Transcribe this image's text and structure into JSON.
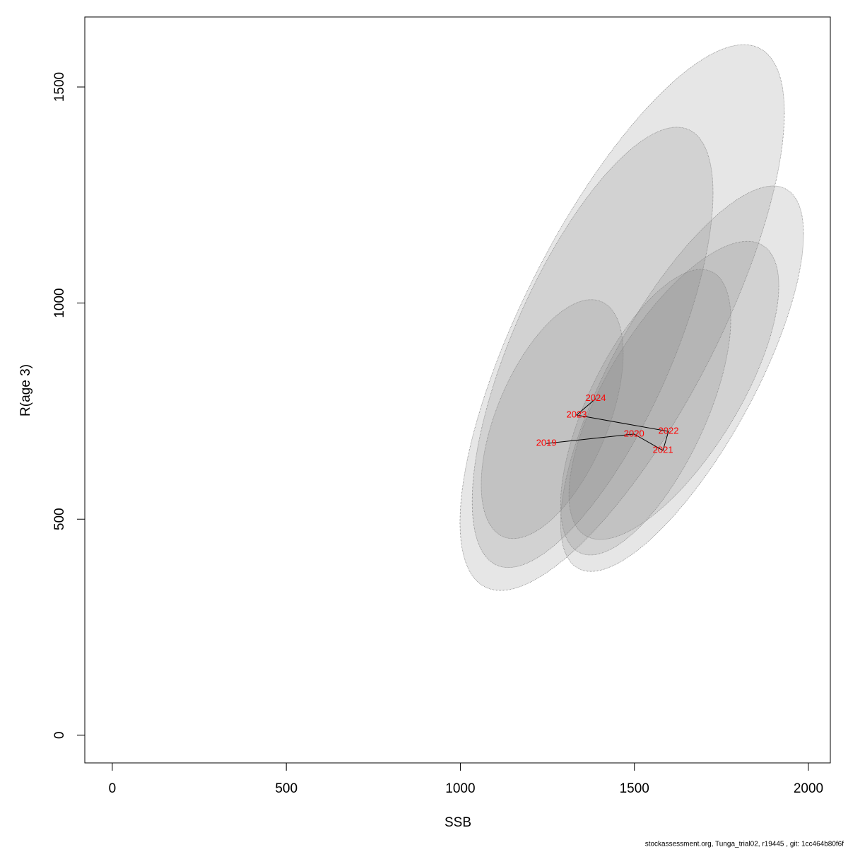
{
  "chart_data": {
    "type": "line",
    "x_label": "SSB",
    "y_label": "R(age 3)",
    "footer": "stockassessment.org, Tunga_trial02, r19445 , git: 1cc464b80f6f",
    "x": [
      1247,
      1499,
      1582,
      1598,
      1334,
      1389
    ],
    "series": [
      {
        "values": [
          675,
          697,
          659,
          703,
          741,
          779
        ],
        "color": "#ff0000",
        "point_labels": [
          "2019",
          "2020",
          "2021",
          "2022",
          "2023",
          "2024"
        ]
      }
    ],
    "ellipses": [
      {
        "x_range": [
          999,
          1931
        ],
        "y_range": [
          335,
          1598
        ],
        "corr": 0.75
      },
      {
        "x_range": [
          1034,
          1726
        ],
        "y_range": [
          388,
          1407
        ],
        "corr": 0.7
      },
      {
        "x_range": [
          1288,
          1986
        ],
        "y_range": [
          379,
          1271
        ],
        "corr": 0.75
      },
      {
        "x_range": [
          1312,
          1915
        ],
        "y_range": [
          453,
          1143
        ],
        "corr": 0.7
      },
      {
        "x_range": [
          1288,
          1777
        ],
        "y_range": [
          417,
          1078
        ],
        "corr": 0.65
      },
      {
        "x_range": [
          1060,
          1468
        ],
        "y_range": [
          455,
          1008
        ],
        "corr": 0.55
      }
    ],
    "xlim": [
      -79,
      2063
    ],
    "ylim": [
      -64,
      1662
    ],
    "xticks": [
      0,
      500,
      1000,
      1500,
      2000
    ],
    "yticks": [
      0,
      500,
      1000,
      1500
    ]
  }
}
